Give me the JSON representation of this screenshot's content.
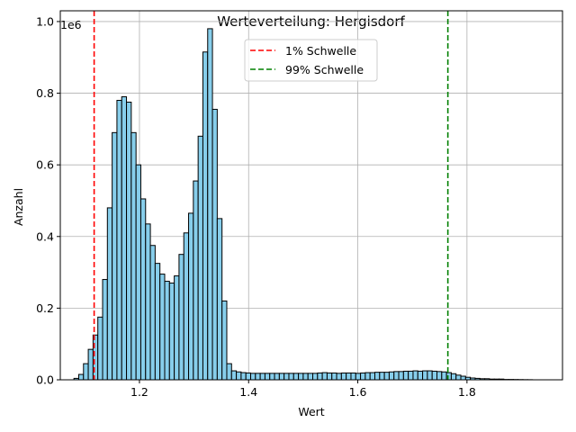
{
  "chart_data": {
    "type": "bar",
    "title": "Werteverteilung: Hergisdorf",
    "xlabel": "Wert",
    "ylabel": "Anzahl",
    "y_multiplier_label": "1e6",
    "xlim": [
      1.055,
      1.975
    ],
    "ylim": [
      0,
      1.03
    ],
    "xticks": [
      1.2,
      1.4,
      1.6,
      1.8
    ],
    "xtick_labels": [
      "1.2",
      "1.4",
      "1.6",
      "1.8"
    ],
    "yticks": [
      0.0,
      0.2,
      0.4,
      0.6,
      0.8,
      1.0
    ],
    "ytick_labels": [
      "0.0",
      "0.2",
      "0.4",
      "0.6",
      "0.8",
      "1.0"
    ],
    "grid": true,
    "legend_position": "top-center",
    "bar_color": "#87ceeb",
    "bar_edge_color": "#000000",
    "bin_start": 1.08,
    "bin_width": 0.00875,
    "values": [
      0.004,
      0.015,
      0.045,
      0.085,
      0.125,
      0.175,
      0.28,
      0.48,
      0.69,
      0.78,
      0.79,
      0.775,
      0.69,
      0.6,
      0.505,
      0.435,
      0.375,
      0.325,
      0.295,
      0.275,
      0.27,
      0.29,
      0.35,
      0.41,
      0.465,
      0.555,
      0.68,
      0.915,
      0.98,
      0.755,
      0.45,
      0.22,
      0.045,
      0.025,
      0.022,
      0.02,
      0.019,
      0.018,
      0.018,
      0.018,
      0.018,
      0.018,
      0.018,
      0.018,
      0.018,
      0.018,
      0.018,
      0.018,
      0.018,
      0.018,
      0.018,
      0.019,
      0.02,
      0.019,
      0.019,
      0.018,
      0.019,
      0.019,
      0.019,
      0.018,
      0.019,
      0.02,
      0.02,
      0.021,
      0.021,
      0.021,
      0.022,
      0.023,
      0.023,
      0.024,
      0.024,
      0.025,
      0.024,
      0.025,
      0.025,
      0.024,
      0.023,
      0.022,
      0.02,
      0.017,
      0.013,
      0.01,
      0.007,
      0.005,
      0.004,
      0.003,
      0.003,
      0.002,
      0.002,
      0.002,
      0.001,
      0.001,
      0.0008,
      0.0006,
      0.0004,
      0.0003
    ],
    "thresholds": [
      {
        "name": "1% Schwelle",
        "x": 1.117,
        "color": "#ff0000"
      },
      {
        "name": "99% Schwelle",
        "x": 1.765,
        "color": "#008000"
      }
    ]
  }
}
